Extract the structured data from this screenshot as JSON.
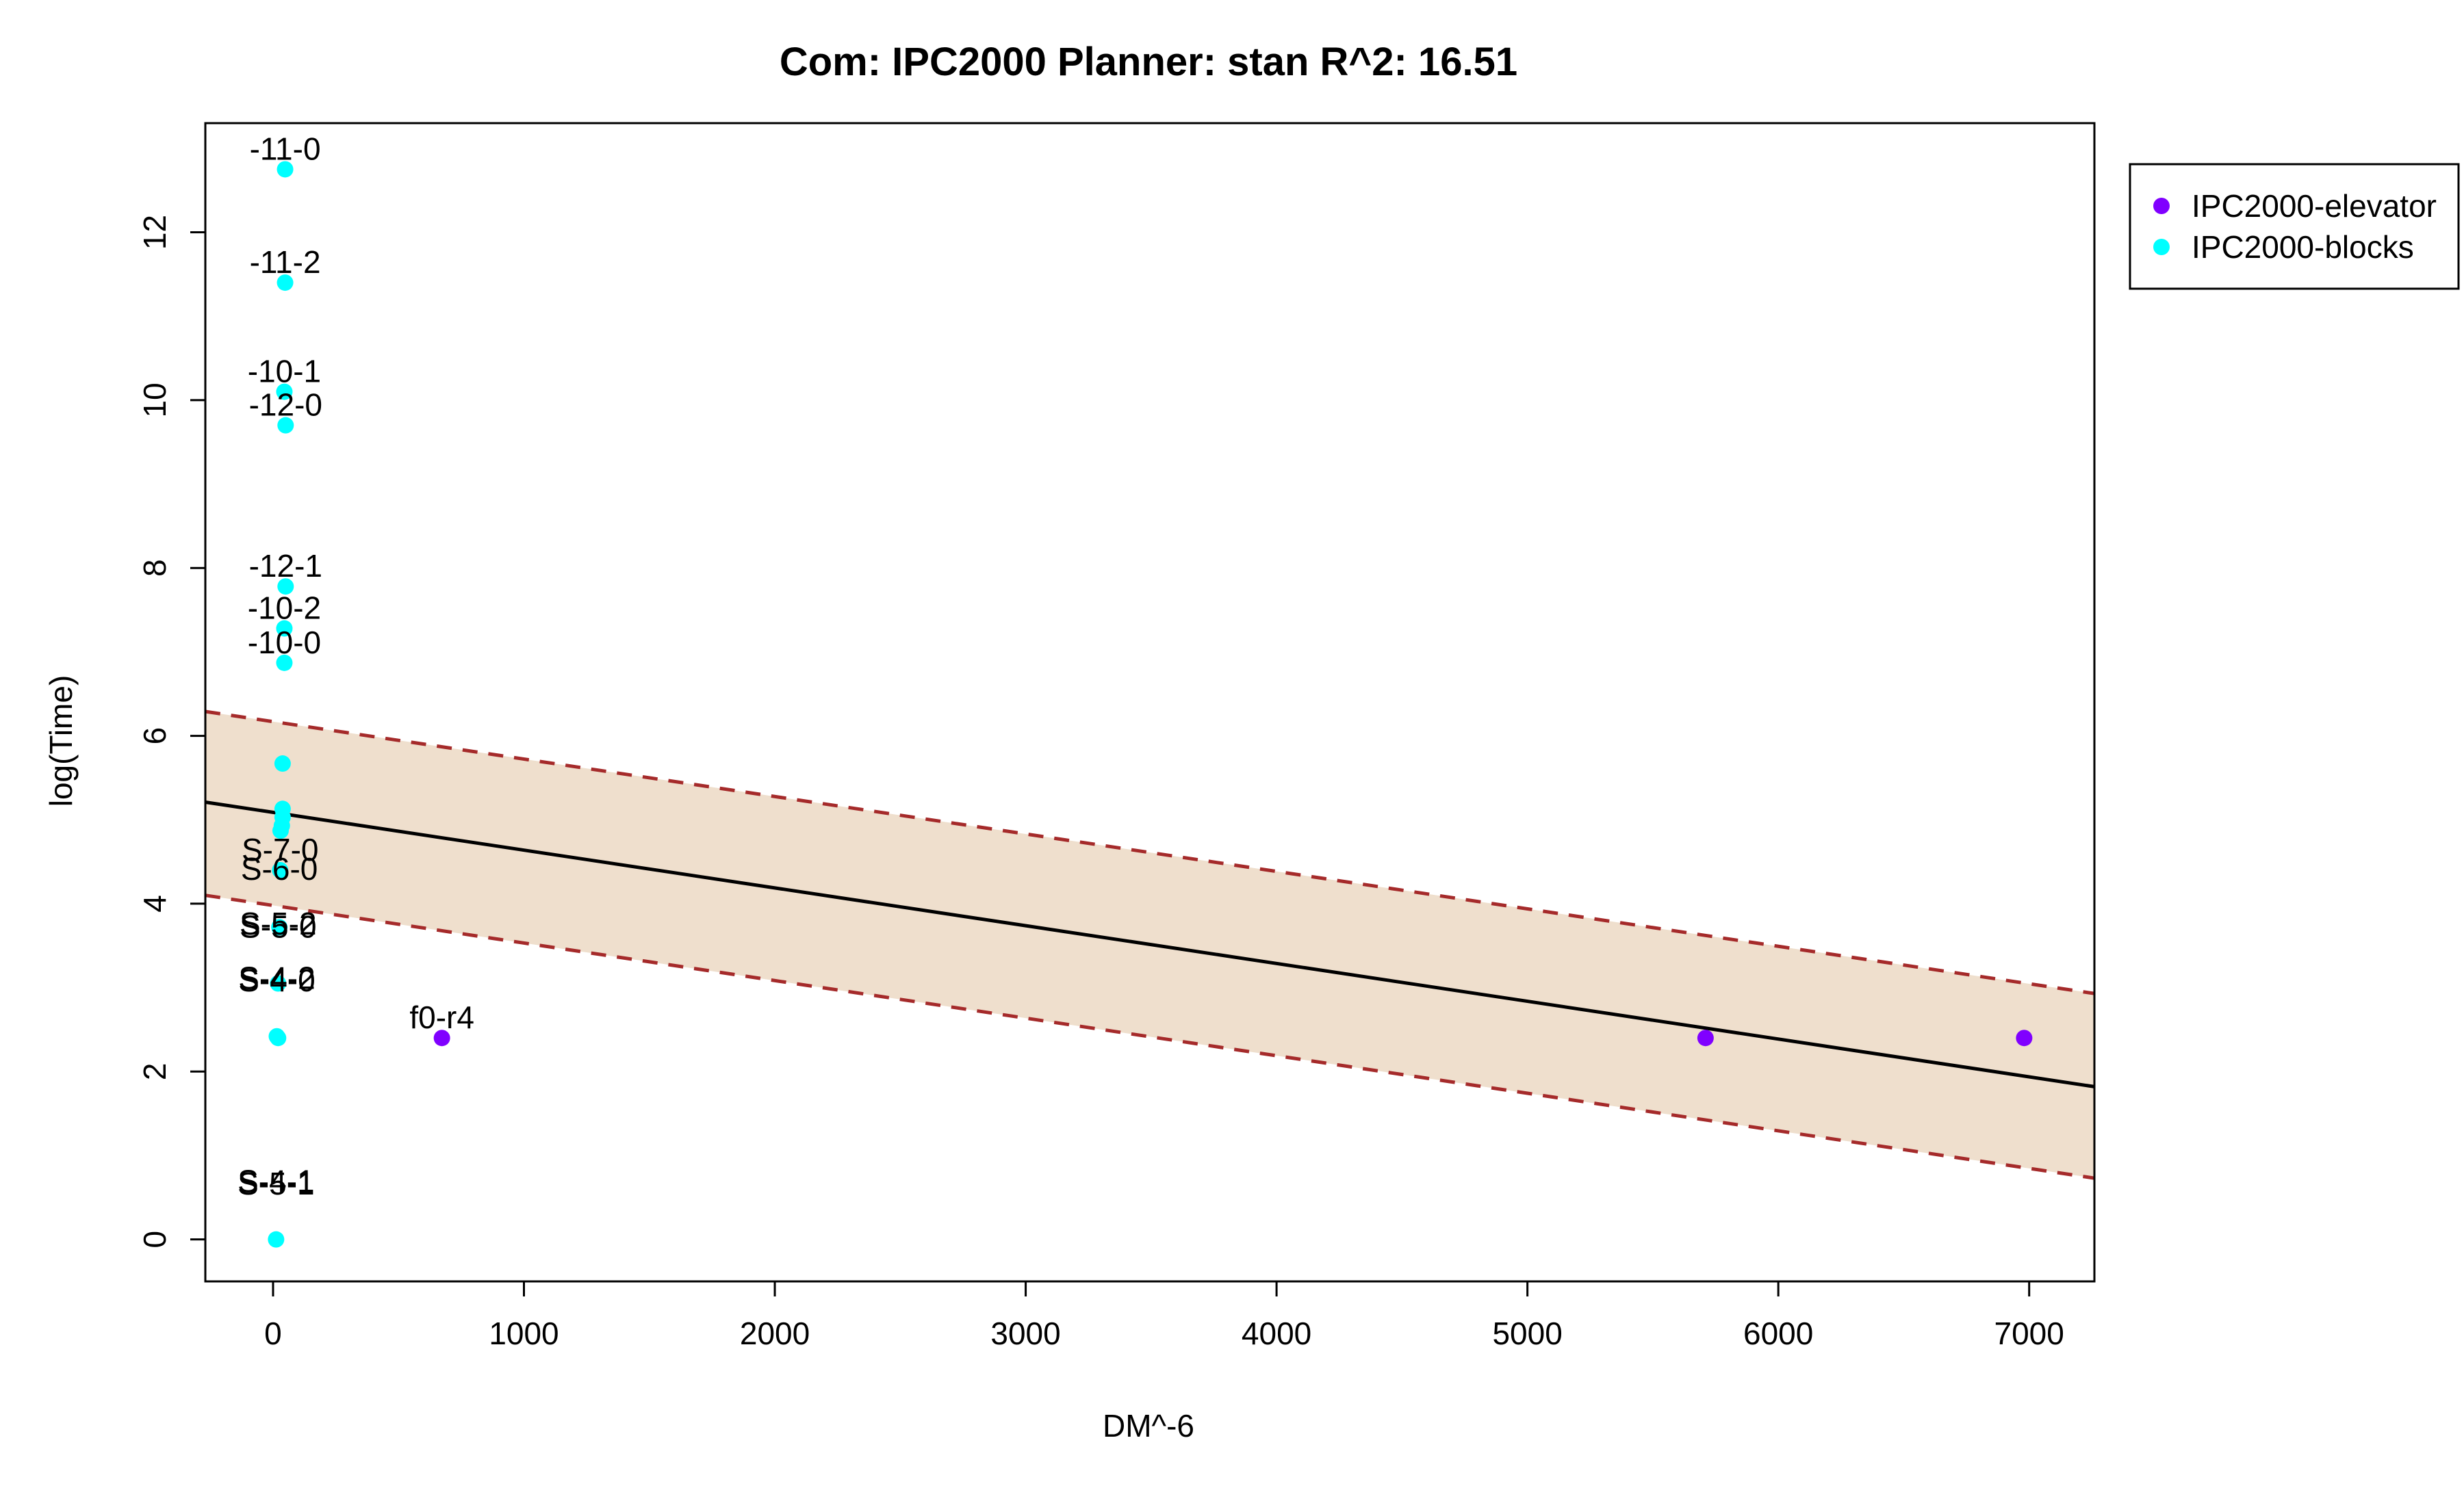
{
  "chart_data": {
    "type": "scatter",
    "title": "Com: IPC2000 Planner: stan R^2: 16.51",
    "xlabel": "DM^-6",
    "ylabel": "log(Time)",
    "xlim": [
      -270,
      7260
    ],
    "ylim": [
      -0.5,
      13.3
    ],
    "x_ticks": [
      0,
      1000,
      2000,
      3000,
      4000,
      5000,
      6000,
      7000
    ],
    "y_ticks": [
      0,
      2,
      4,
      6,
      8,
      10,
      12
    ],
    "grid": false,
    "legend_position": "outside-right-top",
    "colors": {
      "elevator": "#8000ff",
      "blocks": "#00ffff",
      "band_fill": "#efdfcd",
      "band_line": "#a52a2a",
      "fit_line": "#000000"
    },
    "series": [
      {
        "name": "IPC2000-elevator",
        "color": "#8000ff",
        "points": [
          {
            "x": 673,
            "y": 2.4
          },
          {
            "x": 5710,
            "y": 2.4
          },
          {
            "x": 6980,
            "y": 2.4
          }
        ]
      },
      {
        "name": "IPC2000-blocks",
        "color": "#00ffff",
        "points": [
          {
            "x": 48,
            "y": 12.75
          },
          {
            "x": 48,
            "y": 11.4
          },
          {
            "x": 45,
            "y": 10.1
          },
          {
            "x": 50,
            "y": 9.7
          },
          {
            "x": 50,
            "y": 7.78
          },
          {
            "x": 45,
            "y": 7.28
          },
          {
            "x": 45,
            "y": 6.87
          },
          {
            "x": 38,
            "y": 5.67
          },
          {
            "x": 38,
            "y": 5.13
          },
          {
            "x": 38,
            "y": 5.03
          },
          {
            "x": 35,
            "y": 4.93
          },
          {
            "x": 30,
            "y": 4.87
          },
          {
            "x": 28,
            "y": 4.4
          },
          {
            "x": 25,
            "y": 3.72
          },
          {
            "x": 20,
            "y": 3.05
          },
          {
            "x": 15,
            "y": 2.42
          },
          {
            "x": 20,
            "y": 2.4
          },
          {
            "x": 12,
            "y": 0.0
          }
        ]
      }
    ],
    "annotations": [
      {
        "text": "-11-0",
        "x": 48,
        "y": 12.75
      },
      {
        "text": "-11-2",
        "x": 48,
        "y": 11.4
      },
      {
        "text": "-10-1",
        "x": 45,
        "y": 10.1
      },
      {
        "text": "-12-0",
        "x": 50,
        "y": 9.7
      },
      {
        "text": "-12-1",
        "x": 50,
        "y": 7.78
      },
      {
        "text": "-10-2",
        "x": 45,
        "y": 7.28
      },
      {
        "text": "-10-0",
        "x": 45,
        "y": 6.87
      },
      {
        "text": "S-7-0",
        "x": 28,
        "y": 4.4
      },
      {
        "text": "S-6-0",
        "x": 25,
        "y": 4.17
      },
      {
        "text": "S-5-2",
        "x": 20,
        "y": 3.52
      },
      {
        "text": "S-5-0",
        "x": 20,
        "y": 3.48
      },
      {
        "text": "S-4-2",
        "x": 15,
        "y": 2.87
      },
      {
        "text": "S-4-0",
        "x": 15,
        "y": 2.84
      },
      {
        "text": "f0-r4",
        "x": 673,
        "y": 2.4
      },
      {
        "text": "S-4-1",
        "x": 12,
        "y": 0.45
      },
      {
        "text": "S-5-1",
        "x": 12,
        "y": 0.42
      }
    ],
    "fit_line": {
      "x": [
        -270,
        7260
      ],
      "y": [
        5.21,
        1.82
      ]
    },
    "band_upper": {
      "x": [
        -270,
        7260
      ],
      "y": [
        6.29,
        2.93
      ]
    },
    "band_lower": {
      "x": [
        -270,
        7260
      ],
      "y": [
        4.1,
        0.73
      ]
    }
  }
}
